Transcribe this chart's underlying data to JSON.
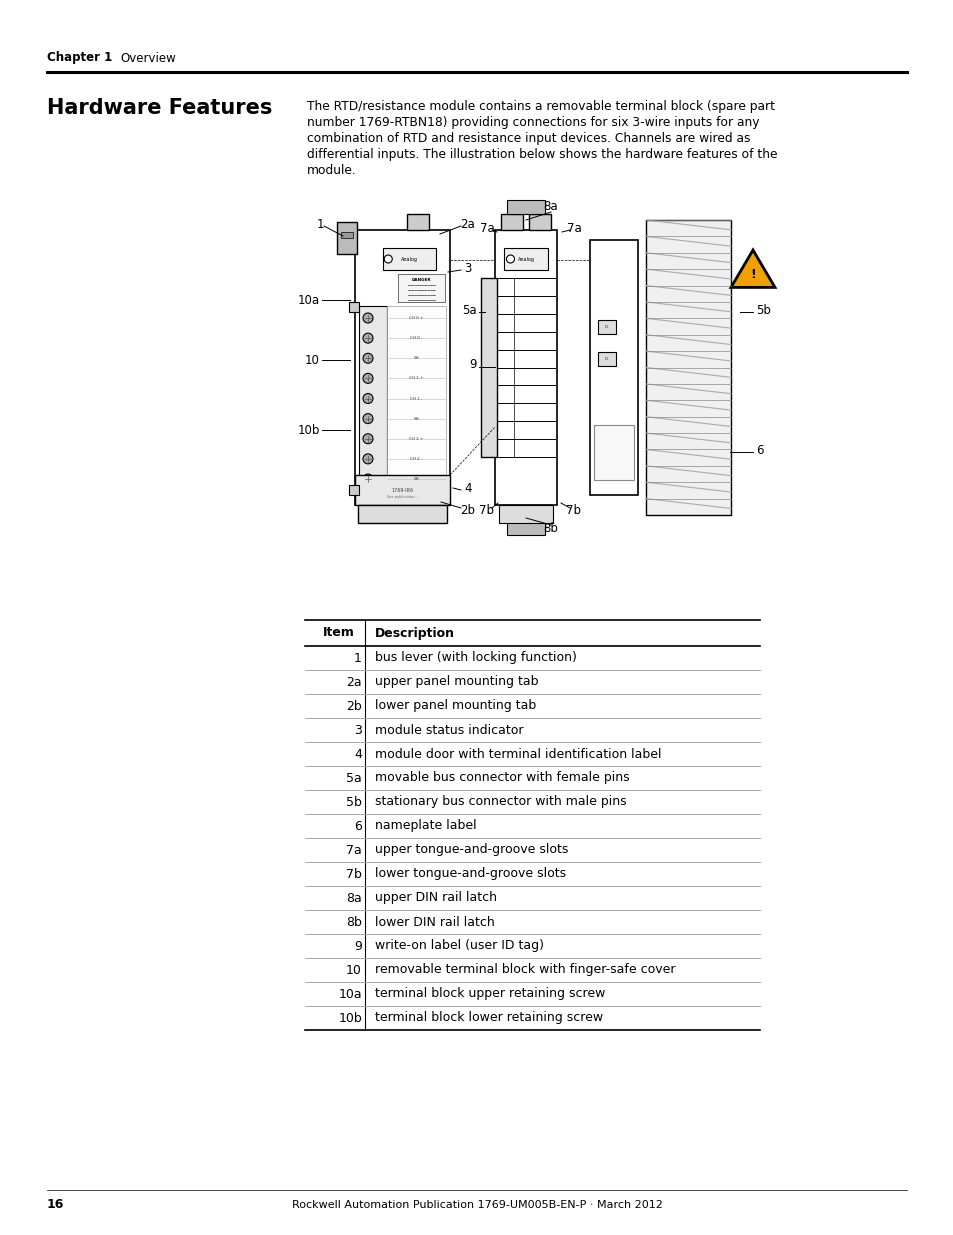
{
  "page_background": "#ffffff",
  "header_chapter": "Chapter 1",
  "header_overview": "Overview",
  "section_title": "Hardware Features",
  "body_text_lines": [
    "The RTD/resistance module contains a removable terminal block (spare part",
    "number 1769-RTBN18) providing connections for six 3-wire inputs for any",
    "combination of RTD and resistance input devices. Channels are wired as",
    "differential inputs. The illustration below shows the hardware features of the",
    "module."
  ],
  "table_items": [
    [
      "Item",
      "Description"
    ],
    [
      "1",
      "bus lever (with locking function)"
    ],
    [
      "2a",
      "upper panel mounting tab"
    ],
    [
      "2b",
      "lower panel mounting tab"
    ],
    [
      "3",
      "module status indicator"
    ],
    [
      "4",
      "module door with terminal identification label"
    ],
    [
      "5a",
      "movable bus connector with female pins"
    ],
    [
      "5b",
      "stationary bus connector with male pins"
    ],
    [
      "6",
      "nameplate label"
    ],
    [
      "7a",
      "upper tongue-and-groove slots"
    ],
    [
      "7b",
      "lower tongue-and-groove slots"
    ],
    [
      "8a",
      "upper DIN rail latch"
    ],
    [
      "8b",
      "lower DIN rail latch"
    ],
    [
      "9",
      "write-on label (user ID tag)"
    ],
    [
      "10",
      "removable terminal block with finger-safe cover"
    ],
    [
      "10a",
      "terminal block upper retaining screw"
    ],
    [
      "10b",
      "terminal block lower retaining screw"
    ]
  ],
  "footer_page": "16",
  "footer_text": "Rockwell Automation Publication 1769-UM005B-EN-P · March 2012"
}
